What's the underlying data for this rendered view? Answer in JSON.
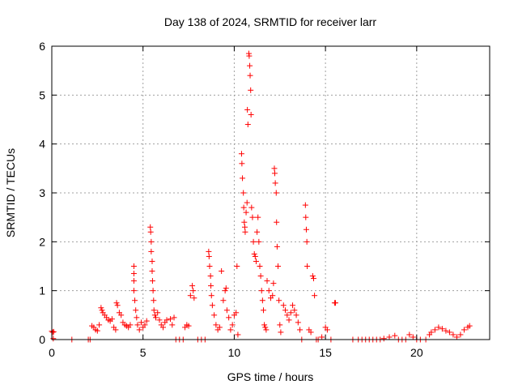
{
  "chart_data": {
    "type": "scatter",
    "title": "Day 138 of 2024, SRMTID for receiver larr",
    "xlabel": "GPS time / hours",
    "ylabel": "SRMTID / TECUs",
    "xlim": [
      0,
      24
    ],
    "ylim": [
      0,
      6
    ],
    "xticks": [
      0,
      5,
      10,
      15,
      20
    ],
    "yticks": [
      0,
      1,
      2,
      3,
      4,
      5,
      6
    ],
    "grid": true,
    "marker": "plus",
    "color": "#ff0000",
    "series": [
      {
        "name": "SRMTID",
        "points": [
          [
            0.0,
            0.17
          ],
          [
            0.05,
            0.15
          ],
          [
            0.1,
            0.16
          ],
          [
            0.08,
            0.02
          ],
          [
            1.1,
            0.0
          ],
          [
            2.0,
            0.0
          ],
          [
            2.1,
            0.0
          ],
          [
            2.2,
            0.28
          ],
          [
            2.3,
            0.25
          ],
          [
            2.4,
            0.2
          ],
          [
            2.5,
            0.18
          ],
          [
            2.6,
            0.3
          ],
          [
            2.7,
            0.65
          ],
          [
            2.75,
            0.6
          ],
          [
            2.8,
            0.55
          ],
          [
            2.9,
            0.5
          ],
          [
            3.0,
            0.45
          ],
          [
            3.1,
            0.4
          ],
          [
            3.2,
            0.38
          ],
          [
            3.3,
            0.42
          ],
          [
            3.4,
            0.25
          ],
          [
            3.5,
            0.2
          ],
          [
            3.55,
            0.75
          ],
          [
            3.6,
            0.7
          ],
          [
            3.7,
            0.55
          ],
          [
            3.8,
            0.5
          ],
          [
            3.9,
            0.35
          ],
          [
            4.0,
            0.3
          ],
          [
            4.1,
            0.28
          ],
          [
            4.2,
            0.25
          ],
          [
            4.3,
            0.3
          ],
          [
            4.5,
            1.5
          ],
          [
            4.5,
            1.35
          ],
          [
            4.5,
            1.2
          ],
          [
            4.5,
            1.0
          ],
          [
            4.55,
            0.8
          ],
          [
            4.6,
            0.6
          ],
          [
            4.65,
            0.45
          ],
          [
            4.7,
            0.3
          ],
          [
            4.8,
            0.2
          ],
          [
            4.9,
            0.35
          ],
          [
            5.0,
            0.25
          ],
          [
            5.1,
            0.3
          ],
          [
            5.2,
            0.38
          ],
          [
            5.4,
            2.3
          ],
          [
            5.42,
            2.2
          ],
          [
            5.45,
            2.0
          ],
          [
            5.45,
            1.8
          ],
          [
            5.5,
            1.6
          ],
          [
            5.5,
            1.4
          ],
          [
            5.52,
            1.2
          ],
          [
            5.55,
            1.0
          ],
          [
            5.58,
            0.8
          ],
          [
            5.6,
            0.6
          ],
          [
            5.65,
            0.5
          ],
          [
            5.7,
            0.45
          ],
          [
            5.8,
            0.55
          ],
          [
            5.9,
            0.4
          ],
          [
            6.0,
            0.3
          ],
          [
            6.1,
            0.25
          ],
          [
            6.2,
            0.35
          ],
          [
            6.3,
            0.4
          ],
          [
            6.5,
            0.42
          ],
          [
            6.6,
            0.3
          ],
          [
            6.7,
            0.45
          ],
          [
            6.8,
            0.0
          ],
          [
            7.0,
            0.0
          ],
          [
            7.2,
            0.0
          ],
          [
            7.3,
            0.25
          ],
          [
            7.4,
            0.3
          ],
          [
            7.5,
            0.28
          ],
          [
            7.6,
            0.9
          ],
          [
            7.7,
            1.1
          ],
          [
            7.75,
            1.0
          ],
          [
            7.8,
            0.85
          ],
          [
            8.0,
            0.0
          ],
          [
            8.2,
            0.0
          ],
          [
            8.4,
            0.0
          ],
          [
            8.6,
            1.8
          ],
          [
            8.62,
            1.7
          ],
          [
            8.65,
            1.5
          ],
          [
            8.7,
            1.3
          ],
          [
            8.72,
            1.1
          ],
          [
            8.75,
            0.9
          ],
          [
            8.8,
            0.7
          ],
          [
            8.9,
            0.5
          ],
          [
            9.0,
            0.3
          ],
          [
            9.1,
            0.2
          ],
          [
            9.2,
            0.25
          ],
          [
            9.3,
            1.4
          ],
          [
            9.4,
            0.8
          ],
          [
            9.5,
            1.0
          ],
          [
            9.55,
            1.05
          ],
          [
            9.6,
            0.6
          ],
          [
            9.7,
            0.45
          ],
          [
            9.8,
            0.2
          ],
          [
            9.9,
            0.3
          ],
          [
            10.0,
            0.5
          ],
          [
            10.1,
            0.55
          ],
          [
            10.2,
            0.1
          ],
          [
            10.15,
            1.5
          ],
          [
            10.4,
            3.8
          ],
          [
            10.42,
            3.6
          ],
          [
            10.45,
            3.3
          ],
          [
            10.5,
            3.0
          ],
          [
            10.52,
            2.7
          ],
          [
            10.55,
            2.4
          ],
          [
            10.58,
            2.3
          ],
          [
            10.6,
            2.2
          ],
          [
            10.65,
            2.6
          ],
          [
            10.7,
            2.8
          ],
          [
            10.72,
            4.7
          ],
          [
            10.75,
            4.4
          ],
          [
            10.8,
            5.85
          ],
          [
            10.82,
            5.8
          ],
          [
            10.85,
            5.6
          ],
          [
            10.87,
            5.4
          ],
          [
            10.9,
            5.1
          ],
          [
            10.92,
            4.6
          ],
          [
            10.95,
            2.7
          ],
          [
            11.0,
            2.5
          ],
          [
            11.05,
            2.0
          ],
          [
            11.1,
            1.75
          ],
          [
            11.15,
            1.7
          ],
          [
            11.2,
            1.6
          ],
          [
            11.25,
            2.2
          ],
          [
            11.3,
            2.5
          ],
          [
            11.35,
            2.0
          ],
          [
            11.4,
            1.5
          ],
          [
            11.45,
            1.3
          ],
          [
            11.5,
            1.0
          ],
          [
            11.55,
            0.8
          ],
          [
            11.6,
            0.6
          ],
          [
            11.65,
            0.3
          ],
          [
            11.7,
            0.25
          ],
          [
            11.75,
            0.2
          ],
          [
            11.8,
            1.2
          ],
          [
            11.9,
            1.0
          ],
          [
            12.0,
            0.85
          ],
          [
            12.1,
            0.9
          ],
          [
            12.15,
            1.15
          ],
          [
            12.2,
            3.5
          ],
          [
            12.22,
            3.4
          ],
          [
            12.25,
            3.2
          ],
          [
            12.3,
            3.0
          ],
          [
            12.32,
            2.4
          ],
          [
            12.35,
            1.9
          ],
          [
            12.4,
            1.5
          ],
          [
            12.45,
            0.8
          ],
          [
            12.5,
            0.3
          ],
          [
            12.55,
            0.15
          ],
          [
            12.7,
            0.7
          ],
          [
            12.8,
            0.6
          ],
          [
            12.9,
            0.5
          ],
          [
            13.0,
            0.4
          ],
          [
            13.1,
            0.55
          ],
          [
            13.2,
            0.7
          ],
          [
            13.3,
            0.6
          ],
          [
            13.4,
            0.5
          ],
          [
            13.5,
            0.35
          ],
          [
            13.6,
            0.2
          ],
          [
            13.7,
            0.0
          ],
          [
            13.9,
            2.75
          ],
          [
            13.92,
            2.5
          ],
          [
            13.95,
            2.25
          ],
          [
            13.98,
            2.0
          ],
          [
            14.0,
            1.5
          ],
          [
            14.1,
            0.2
          ],
          [
            14.2,
            0.15
          ],
          [
            14.3,
            1.3
          ],
          [
            14.35,
            1.25
          ],
          [
            14.4,
            0.9
          ],
          [
            14.5,
            0.0
          ],
          [
            14.6,
            0.0
          ],
          [
            14.8,
            0.05
          ],
          [
            15.0,
            0.25
          ],
          [
            15.1,
            0.2
          ],
          [
            15.3,
            0.0
          ],
          [
            15.5,
            0.75
          ],
          [
            15.55,
            0.75
          ],
          [
            16.5,
            0.0
          ],
          [
            16.8,
            0.0
          ],
          [
            17.0,
            0.0
          ],
          [
            17.2,
            0.0
          ],
          [
            17.4,
            0.0
          ],
          [
            17.6,
            0.0
          ],
          [
            17.8,
            0.0
          ],
          [
            18.0,
            0.0
          ],
          [
            18.2,
            0.02
          ],
          [
            18.5,
            0.05
          ],
          [
            18.8,
            0.08
          ],
          [
            19.0,
            0.0
          ],
          [
            19.2,
            0.0
          ],
          [
            19.4,
            0.0
          ],
          [
            19.6,
            0.1
          ],
          [
            19.8,
            0.05
          ],
          [
            20.0,
            0.0
          ],
          [
            20.2,
            0.0
          ],
          [
            20.5,
            0.0
          ],
          [
            20.7,
            0.1
          ],
          [
            20.8,
            0.15
          ],
          [
            21.0,
            0.2
          ],
          [
            21.2,
            0.25
          ],
          [
            21.4,
            0.22
          ],
          [
            21.6,
            0.18
          ],
          [
            21.8,
            0.15
          ],
          [
            22.0,
            0.1
          ],
          [
            22.2,
            0.05
          ],
          [
            22.4,
            0.1
          ],
          [
            22.6,
            0.2
          ],
          [
            22.8,
            0.25
          ],
          [
            22.9,
            0.28
          ]
        ]
      }
    ]
  }
}
